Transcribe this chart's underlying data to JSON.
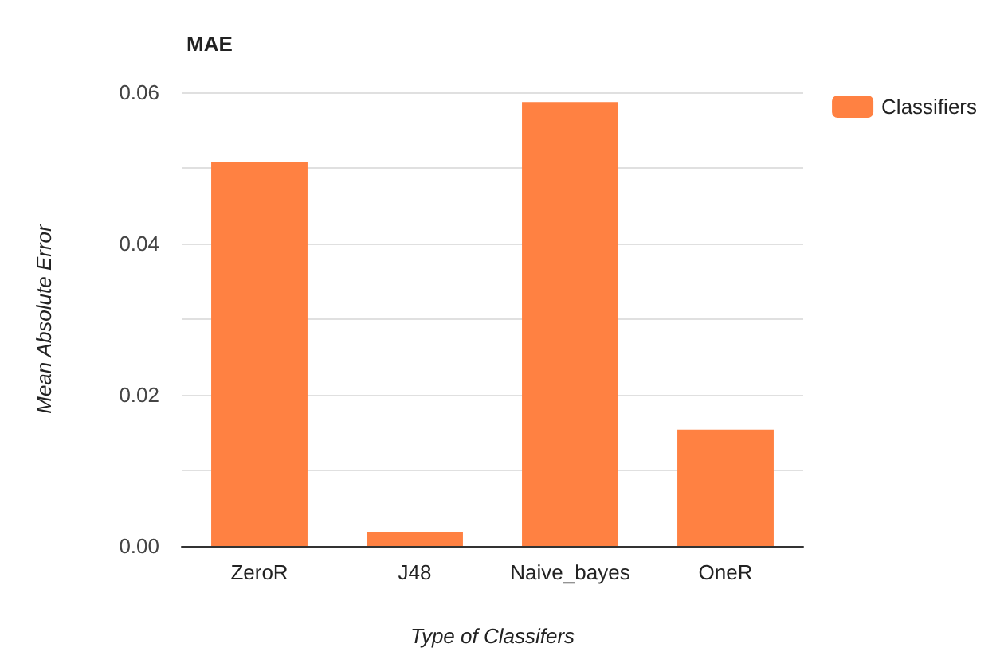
{
  "chart_data": {
    "type": "bar",
    "title": "MAE",
    "xlabel": "Type of Classifers",
    "ylabel": "Mean Absolute Error",
    "categories": [
      "ZeroR",
      "J48",
      "Naive_bayes",
      "OneR"
    ],
    "series": [
      {
        "name": "Classifiers",
        "color": "#ff8142",
        "values": [
          0.0508,
          0.0018,
          0.0587,
          0.0154
        ]
      }
    ],
    "ylim": [
      0,
      0.06
    ],
    "yticks": [
      {
        "value": 0,
        "label": "0.00"
      },
      {
        "value": 0.01,
        "label": null
      },
      {
        "value": 0.02,
        "label": "0.02"
      },
      {
        "value": 0.03,
        "label": null
      },
      {
        "value": 0.04,
        "label": "0.04"
      },
      {
        "value": 0.05,
        "label": null
      },
      {
        "value": 0.06,
        "label": "0.06"
      }
    ],
    "grid": "y",
    "legend": "top right"
  }
}
